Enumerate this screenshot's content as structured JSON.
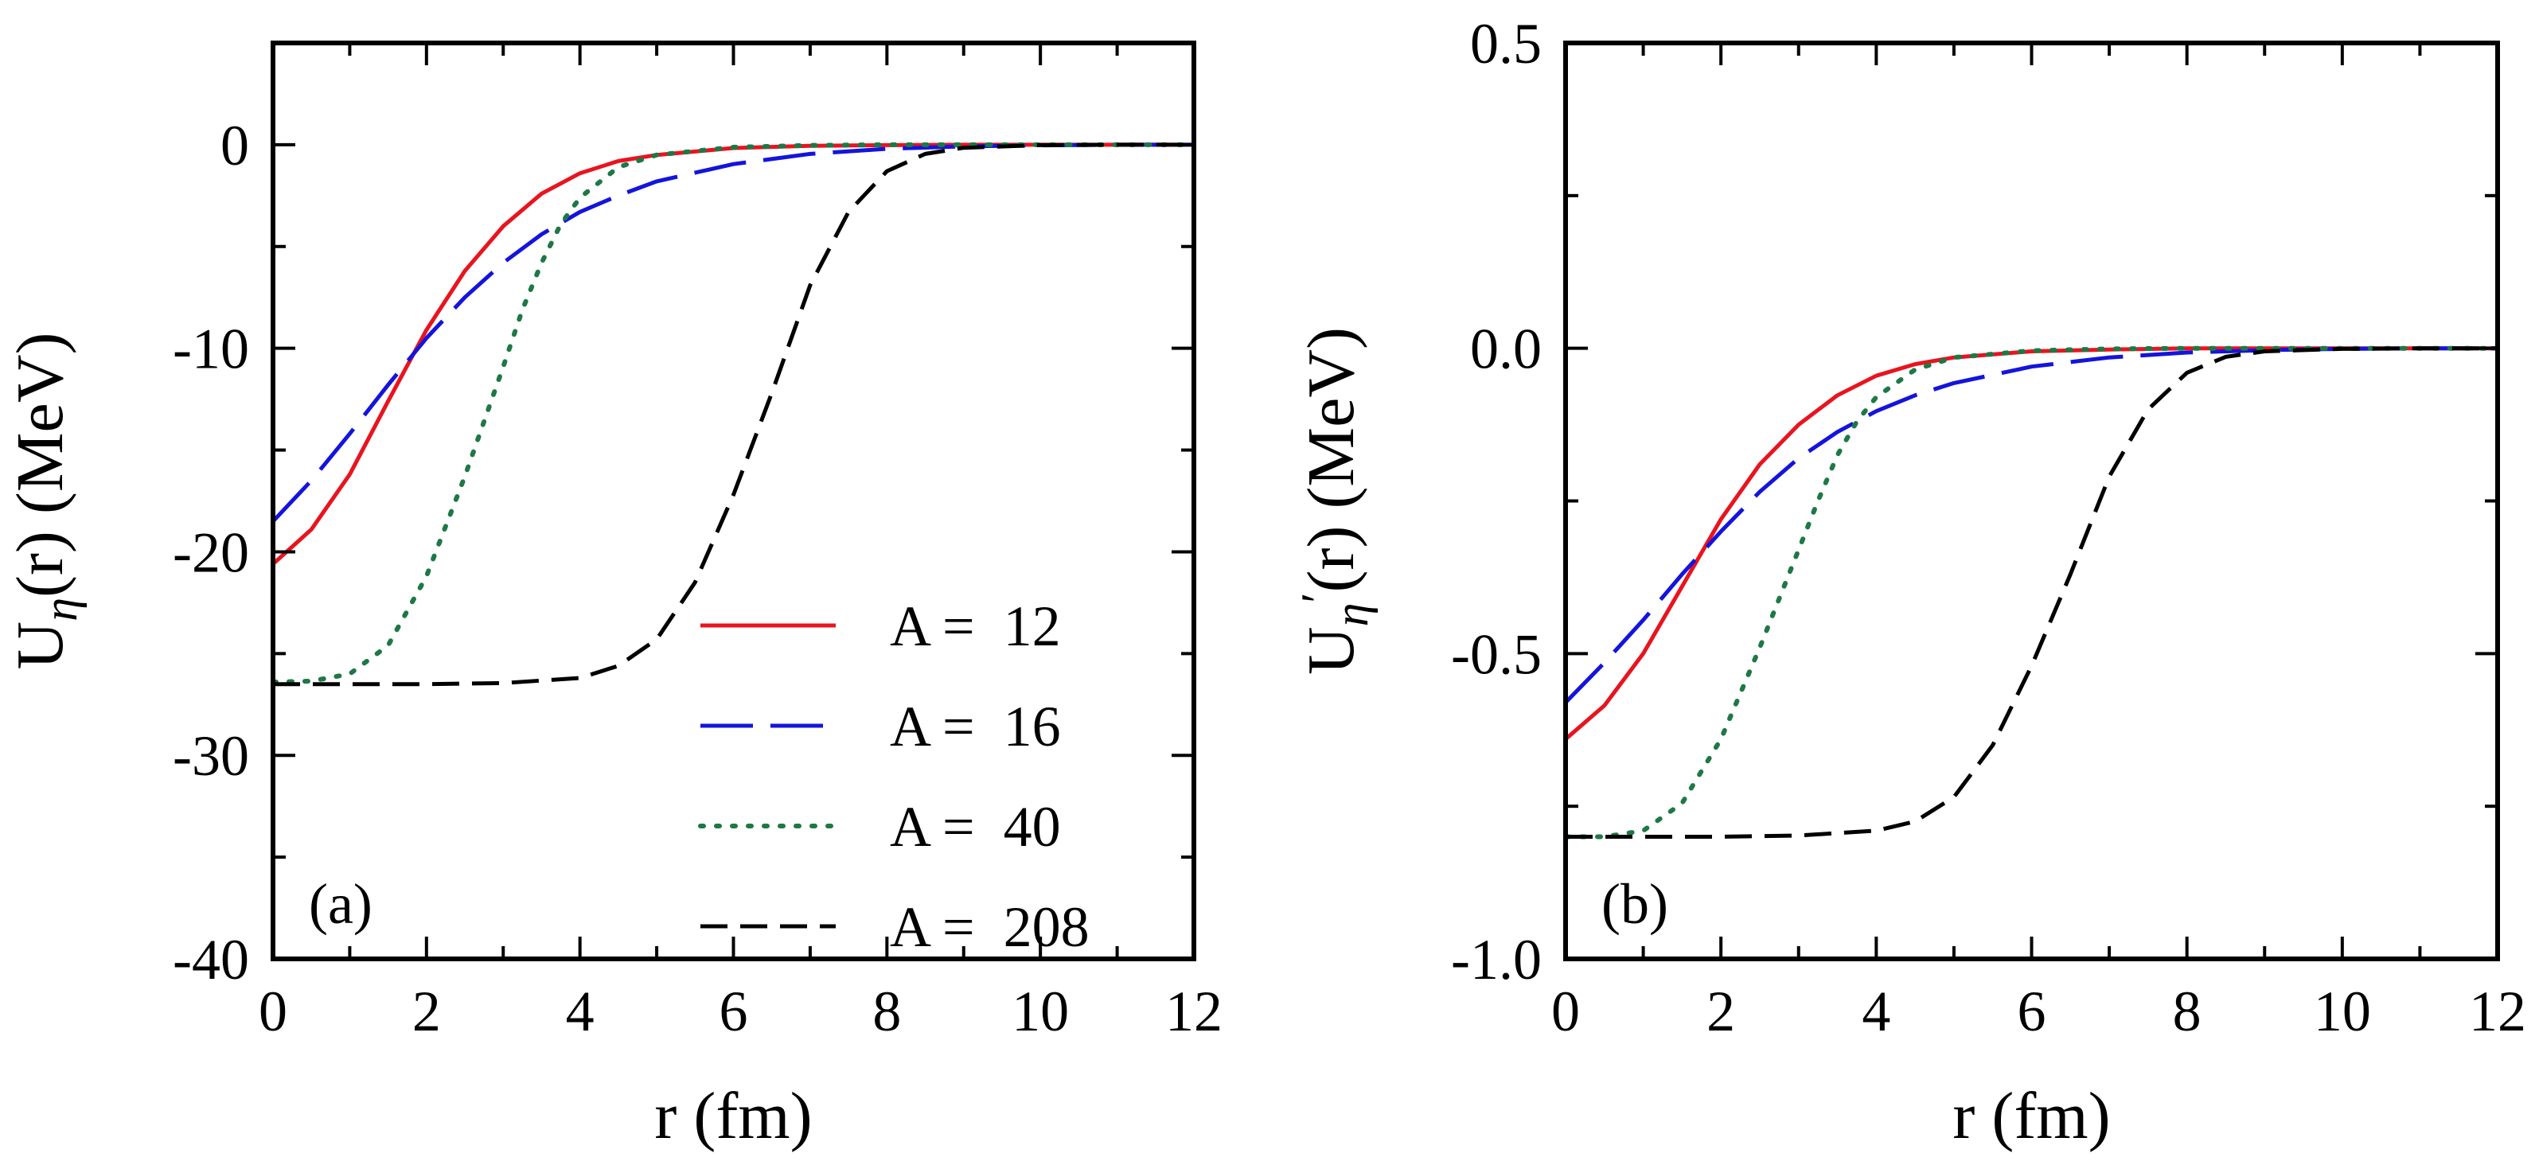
{
  "chart_data": [
    {
      "type": "line",
      "panel_label": "(a)",
      "xlabel": "r (fm)",
      "ylabel_parts": [
        "U",
        "η",
        "(r) (MeV)"
      ],
      "xlim": [
        0,
        12
      ],
      "ylim": [
        -40,
        5
      ],
      "xticks": [
        0,
        2,
        4,
        6,
        8,
        10,
        12
      ],
      "xtick_labels": [
        "0",
        "2",
        "4",
        "6",
        "8",
        "10",
        "12"
      ],
      "yticks": [
        0,
        -10,
        -20,
        -30,
        -40
      ],
      "ytick_labels": [
        "0",
        "-10",
        "-20",
        "-30",
        "-40"
      ],
      "grid": false,
      "legend": {
        "position": "bottom-right"
      },
      "series": [
        {
          "name": "A =  12",
          "color": "#e8141e",
          "dash": "solid",
          "x": [
            0,
            0.5,
            1,
            1.5,
            2,
            2.5,
            3,
            3.5,
            4,
            4.5,
            5,
            6,
            7,
            8,
            9,
            10,
            11,
            12
          ],
          "y": [
            -20.6,
            -18.9,
            -16.2,
            -12.6,
            -9.1,
            -6.2,
            -4.0,
            -2.4,
            -1.4,
            -0.8,
            -0.5,
            -0.16,
            -0.05,
            -0.02,
            0,
            0,
            0,
            0
          ]
        },
        {
          "name": "A =  16",
          "color": "#1414dc",
          "dash": "long-dash",
          "x": [
            0,
            0.5,
            1,
            1.5,
            2,
            2.5,
            3,
            3.5,
            4,
            4.5,
            5,
            6,
            7,
            8,
            9,
            10,
            11,
            12
          ],
          "y": [
            -18.5,
            -16.5,
            -14.2,
            -11.8,
            -9.5,
            -7.5,
            -5.8,
            -4.4,
            -3.3,
            -2.5,
            -1.8,
            -0.95,
            -0.45,
            -0.2,
            -0.08,
            -0.03,
            0,
            0
          ]
        },
        {
          "name": "A =  40",
          "color": "#1e7846",
          "dash": "dotted",
          "x": [
            0,
            0.5,
            1,
            1.5,
            2,
            2.5,
            3,
            3.25,
            3.5,
            3.75,
            4,
            4.5,
            5,
            6,
            7,
            8,
            9,
            10,
            12
          ],
          "y": [
            -26.4,
            -26.35,
            -26.0,
            -24.6,
            -21.2,
            -16.3,
            -10.9,
            -8.1,
            -5.8,
            -3.9,
            -2.6,
            -1.1,
            -0.5,
            -0.12,
            -0.03,
            0,
            0,
            0,
            0
          ]
        },
        {
          "name": "A =  208",
          "color": "#000000",
          "dash": "dashed",
          "x": [
            0,
            1,
            2,
            3,
            4,
            4.5,
            5,
            5.5,
            6,
            6.5,
            7,
            7.5,
            8,
            8.5,
            9,
            10,
            11,
            12
          ],
          "y": [
            -26.5,
            -26.5,
            -26.5,
            -26.45,
            -26.2,
            -25.6,
            -24.3,
            -21.5,
            -17.2,
            -12.2,
            -6.9,
            -3.3,
            -1.3,
            -0.45,
            -0.15,
            -0.02,
            0,
            0
          ]
        }
      ]
    },
    {
      "type": "line",
      "panel_label": "(b)",
      "xlabel": "r (fm)",
      "ylabel_parts": [
        "U",
        "η",
        "′",
        "(r) (MeV)"
      ],
      "xlim": [
        0,
        12
      ],
      "ylim": [
        -1.0,
        0.5
      ],
      "xticks": [
        0,
        2,
        4,
        6,
        8,
        10,
        12
      ],
      "xtick_labels": [
        "0",
        "2",
        "4",
        "6",
        "8",
        "10",
        "12"
      ],
      "yticks": [
        0.5,
        0.0,
        -0.5,
        -1.0
      ],
      "ytick_labels": [
        "0.5",
        "0.0",
        "-0.5",
        "-1.0"
      ],
      "grid": false,
      "series": [
        {
          "name": "A =  12",
          "color": "#e8141e",
          "dash": "solid",
          "x": [
            0,
            0.5,
            1,
            1.5,
            2,
            2.5,
            3,
            3.5,
            4,
            4.5,
            5,
            6,
            7,
            8,
            9,
            10,
            11,
            12
          ],
          "y": [
            -0.64,
            -0.585,
            -0.5,
            -0.39,
            -0.28,
            -0.19,
            -0.125,
            -0.077,
            -0.045,
            -0.026,
            -0.015,
            -0.005,
            -0.002,
            0,
            0,
            0,
            0,
            0
          ]
        },
        {
          "name": "A =  16",
          "color": "#1414dc",
          "dash": "long-dash",
          "x": [
            0,
            0.5,
            1,
            1.5,
            2,
            2.5,
            3,
            3.5,
            4,
            4.5,
            5,
            6,
            7,
            8,
            9,
            10,
            11,
            12
          ],
          "y": [
            -0.58,
            -0.515,
            -0.445,
            -0.37,
            -0.3,
            -0.235,
            -0.18,
            -0.137,
            -0.103,
            -0.077,
            -0.057,
            -0.03,
            -0.015,
            -0.007,
            -0.003,
            -0.001,
            0,
            0
          ]
        },
        {
          "name": "A =  40",
          "color": "#1e7846",
          "dash": "dotted",
          "x": [
            0,
            0.5,
            1,
            1.5,
            2,
            2.5,
            3,
            3.25,
            3.5,
            3.75,
            4,
            4.5,
            5,
            6,
            7,
            8,
            9,
            10,
            12
          ],
          "y": [
            -0.8,
            -0.8,
            -0.79,
            -0.745,
            -0.64,
            -0.49,
            -0.33,
            -0.25,
            -0.175,
            -0.12,
            -0.08,
            -0.035,
            -0.015,
            -0.004,
            -0.001,
            0,
            0,
            0,
            0
          ]
        },
        {
          "name": "A =  208",
          "color": "#000000",
          "dash": "dashed",
          "x": [
            0,
            1,
            2,
            3,
            4,
            4.5,
            5,
            5.5,
            6,
            6.5,
            7,
            7.5,
            8,
            8.5,
            9,
            10,
            11,
            12
          ],
          "y": [
            -0.8,
            -0.8,
            -0.8,
            -0.798,
            -0.79,
            -0.775,
            -0.735,
            -0.65,
            -0.52,
            -0.37,
            -0.21,
            -0.1,
            -0.04,
            -0.014,
            -0.005,
            -0.001,
            0,
            0
          ]
        }
      ]
    }
  ]
}
